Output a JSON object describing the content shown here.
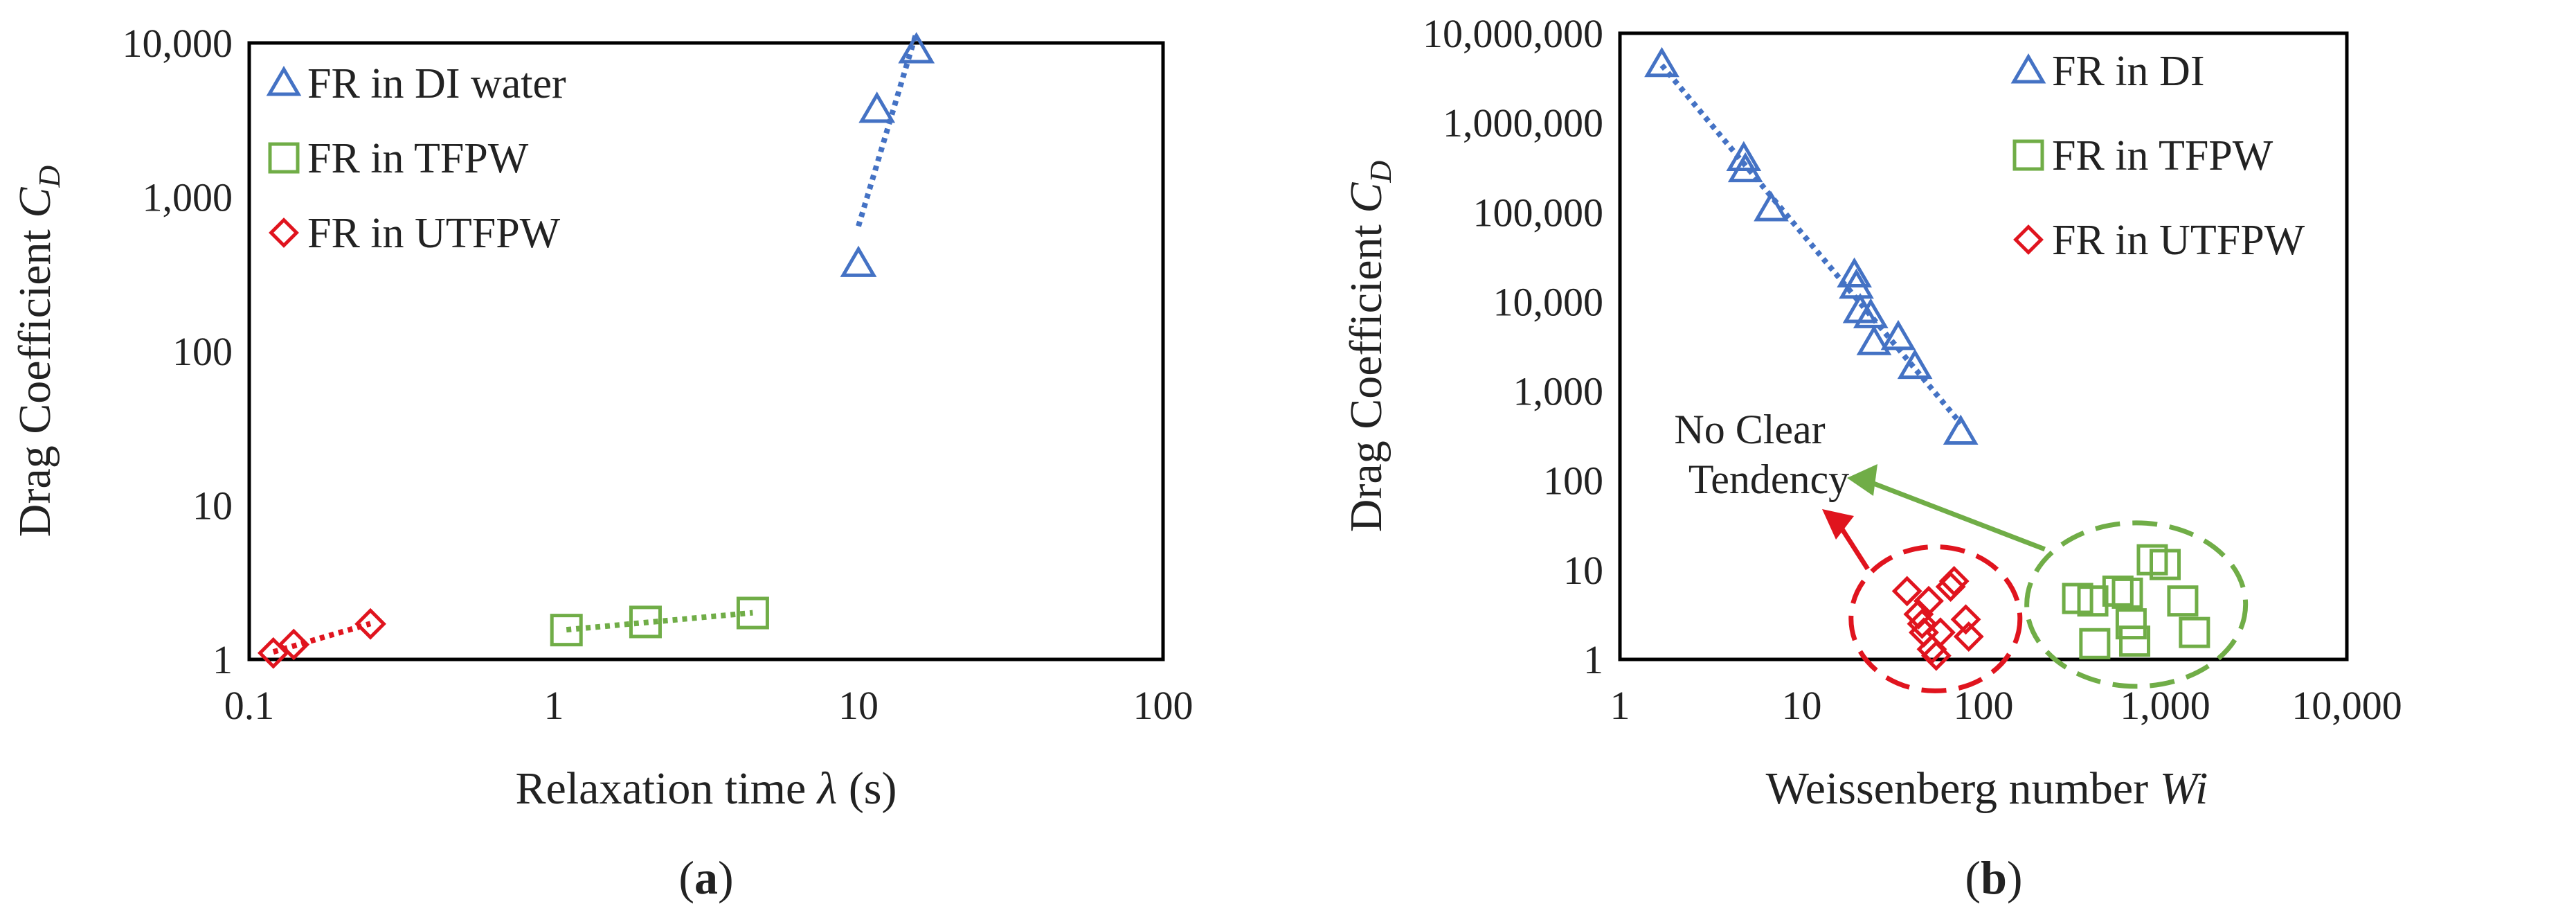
{
  "colors": {
    "blue": "#4472C4",
    "green": "#70AD47",
    "red": "#E0141E",
    "frame": "#000000"
  },
  "chart_data": [
    {
      "type": "scatter",
      "panel_label": "a",
      "xscale": "log",
      "yscale": "log",
      "xlim": [
        0.1,
        100
      ],
      "ylim": [
        1,
        10000
      ],
      "x_ticks": [
        0.1,
        1,
        10,
        100
      ],
      "x_tick_labels": [
        "0.1",
        "1",
        "10",
        "100"
      ],
      "y_ticks": [
        1,
        10,
        100,
        1000,
        10000
      ],
      "y_tick_labels": [
        "1",
        "10",
        "100",
        "1,000",
        "10,000"
      ],
      "xlabel": {
        "prefix": "Relaxation time ",
        "symbol": "λ",
        "suffix": " (s)"
      },
      "ylabel": {
        "prefix": "Drag  Coefficient ",
        "symbol": "C",
        "sub": "D"
      },
      "legend_position": "top-left",
      "series": [
        {
          "name": "FR in DI water",
          "color": "blue",
          "marker": "triangle",
          "x": [
            10,
            11.5,
            15.5
          ],
          "y": [
            370,
            3700,
            9000
          ],
          "trendline": true
        },
        {
          "name": "FR in TFPW",
          "color": "green",
          "marker": "square",
          "x": [
            1.1,
            2.0,
            4.5
          ],
          "y": [
            1.55,
            1.75,
            2.0
          ],
          "trendline": true
        },
        {
          "name": "FR in UTFPW",
          "color": "red",
          "marker": "diamond",
          "x": [
            0.12,
            0.14,
            0.25
          ],
          "y": [
            1.1,
            1.25,
            1.7
          ],
          "trendline": true
        }
      ]
    },
    {
      "type": "scatter",
      "panel_label": "b",
      "xscale": "log",
      "yscale": "log",
      "xlim": [
        1,
        10000
      ],
      "ylim": [
        1,
        10000000
      ],
      "x_ticks": [
        1,
        10,
        100,
        1000,
        10000
      ],
      "x_tick_labels": [
        "1",
        "10",
        "100",
        "1,000",
        "10,000"
      ],
      "y_ticks": [
        1,
        10,
        100,
        1000,
        10000,
        100000,
        1000000,
        10000000
      ],
      "y_tick_labels": [
        "1",
        "10",
        "100",
        "1,000",
        "10,000",
        "100,000",
        "1,000,000",
        "10,000,000"
      ],
      "xlabel": {
        "prefix": "Weissenberg number ",
        "symbol": "Wi",
        "suffix": ""
      },
      "ylabel": {
        "prefix": "Drag  Coefficient ",
        "symbol": "C",
        "sub": "D"
      },
      "legend_position": "top-right",
      "annotation": {
        "line1": "No Clear",
        "line2": "Tendency"
      },
      "series": [
        {
          "name": "FR in DI",
          "color": "blue",
          "marker": "triangle",
          "x": [
            1.7,
            4.8,
            4.9,
            6.8,
            19.5,
            20,
            21,
            24,
            25,
            34,
            42,
            75
          ],
          "y": [
            4500000,
            400000,
            300000,
            110000,
            20000,
            15000,
            8000,
            7000,
            3500,
            4000,
            1900,
            350
          ],
          "trendline": true
        },
        {
          "name": "FR in TFPW",
          "color": "green",
          "marker": "square",
          "x": [
            330,
            400,
            410,
            550,
            620,
            650,
            680,
            850,
            1000,
            1250,
            1450
          ],
          "y": [
            4.8,
            4.5,
            1.5,
            5.8,
            5.5,
            2.5,
            1.6,
            13,
            11.5,
            4.5,
            2.0
          ],
          "trendline": false
        },
        {
          "name": "FR in UTFPW",
          "color": "red",
          "marker": "diamond",
          "x": [
            38,
            44,
            46,
            47,
            50,
            52,
            55,
            58,
            66,
            69,
            80,
            83
          ],
          "y": [
            5.8,
            3.2,
            2.5,
            2.0,
            4.5,
            1.3,
            1.1,
            2.0,
            6.5,
            7.5,
            2.8,
            1.8
          ],
          "trendline": false
        }
      ]
    }
  ]
}
